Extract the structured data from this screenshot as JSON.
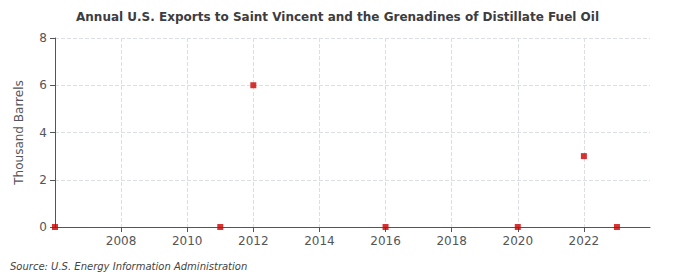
{
  "chart_data": {
    "type": "scatter",
    "title": "Annual U.S. Exports to Saint Vincent and the Grenadines of Distillate Fuel Oil",
    "ylabel": "Thousand Barrels",
    "annotations": [
      "Source: U.S. Energy Information Administration"
    ],
    "x": [
      2006,
      2011,
      2012,
      2016,
      2020,
      2022,
      2023
    ],
    "values": [
      0,
      0,
      6,
      0,
      0,
      3,
      0
    ],
    "color": "#cc0000",
    "marker": "square",
    "xlim": [
      2006.0,
      2024.0
    ],
    "ylim": [
      0,
      8
    ],
    "xticks": [
      2008,
      2010,
      2012,
      2014,
      2016,
      2018,
      2020,
      2022
    ],
    "yticks": [
      0,
      2,
      4,
      6,
      8
    ],
    "grid": true
  }
}
